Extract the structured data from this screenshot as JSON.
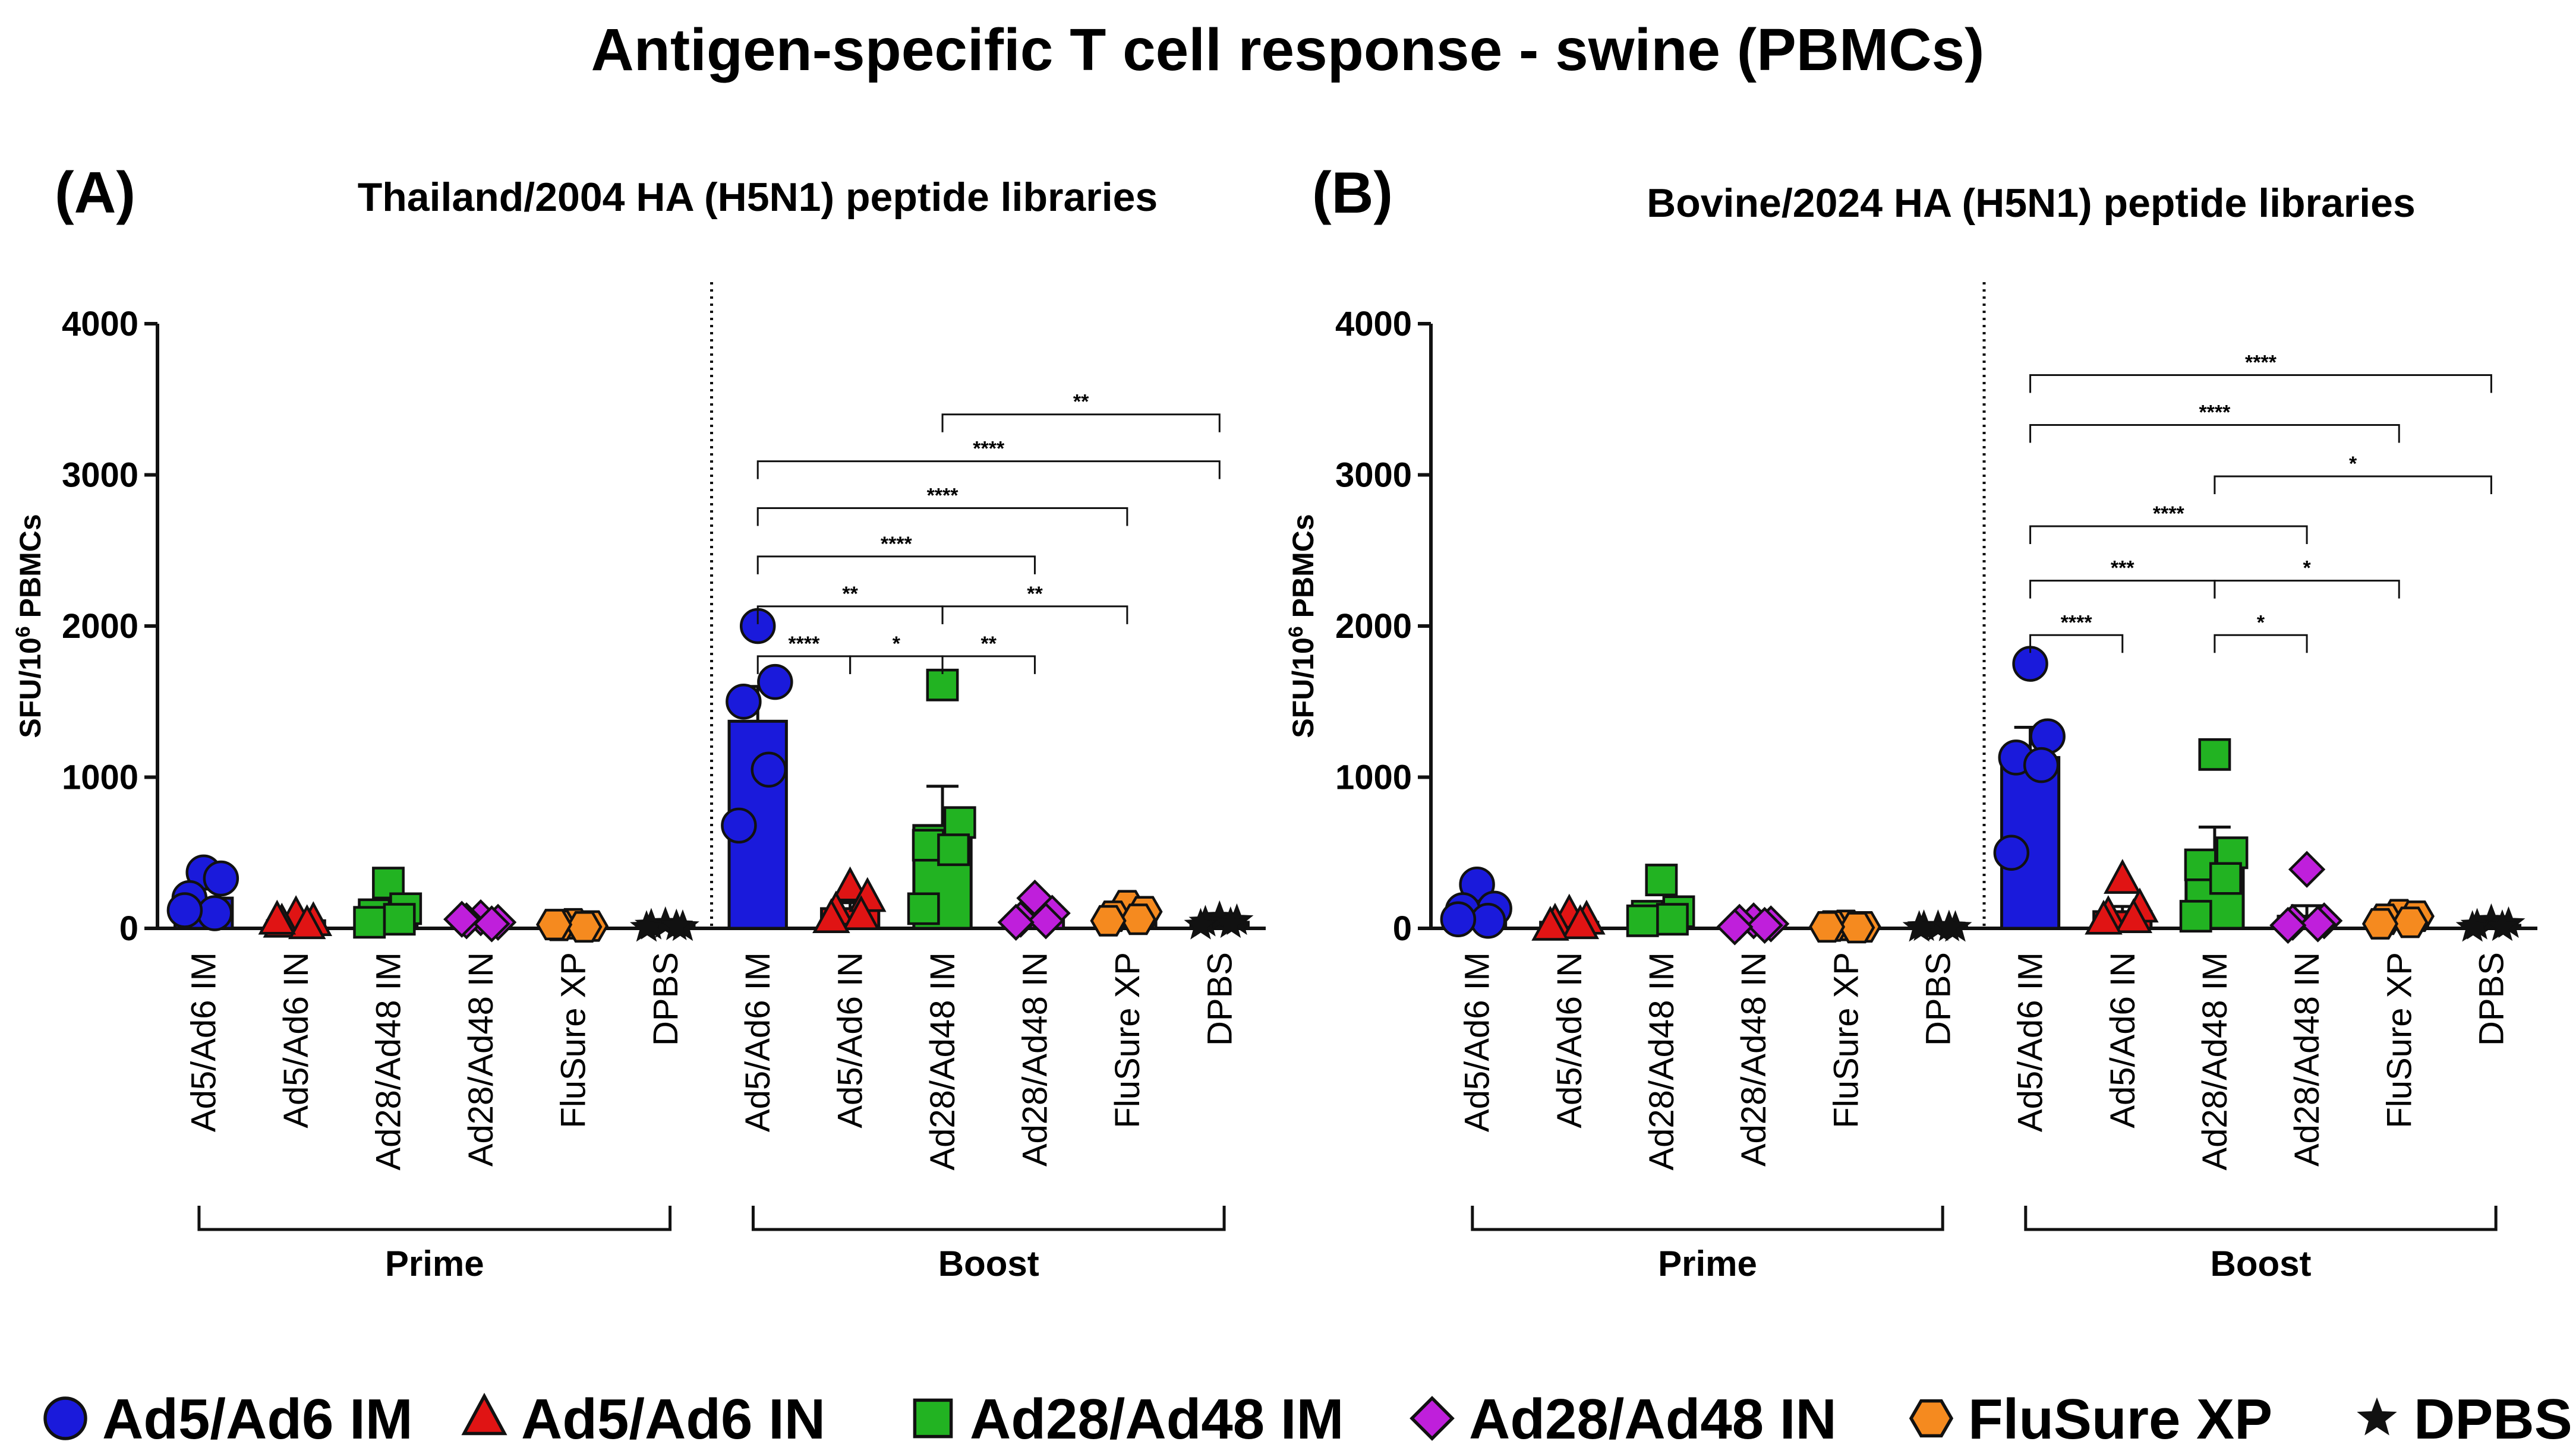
{
  "title": "Antigen-specific T cell response - swine (PBMCs)",
  "colors": {
    "Ad5/Ad6 IM": "#1a1adb",
    "Ad5/Ad6 IN": "#e01414",
    "Ad28/Ad48 IM": "#22b322",
    "Ad28/Ad48 IN": "#bf1fdb",
    "FluSure XP": "#f58a1f",
    "DPBS": "#111111"
  },
  "legend": [
    {
      "label": "Ad5/Ad6 IM",
      "marker": "circle"
    },
    {
      "label": "Ad5/Ad6 IN",
      "marker": "triangle"
    },
    {
      "label": "Ad28/Ad48 IM",
      "marker": "square"
    },
    {
      "label": "Ad28/Ad48 IN",
      "marker": "diamond"
    },
    {
      "label": "FluSure XP",
      "marker": "hexagon"
    },
    {
      "label": "DPBS",
      "marker": "star"
    }
  ],
  "chart_data": [
    {
      "type": "bar",
      "panel_label": "(A)",
      "title": "Thailand/2004 HA (H5N1) peptide libraries",
      "ylabel": "SFU/10",
      "ylabel_sup": "6",
      "ylabel_tail": " PBMCs",
      "ylim": [
        0,
        4000
      ],
      "yticks": [
        0,
        1000,
        2000,
        3000,
        4000
      ],
      "ytick_labels": [
        "0",
        "1000",
        "2000",
        "3000",
        "4000"
      ],
      "groups": [
        {
          "label": "Prime",
          "start": 0,
          "end": 5
        },
        {
          "label": "Boost",
          "start": 6,
          "end": 11
        }
      ],
      "divider_after": 5,
      "categories": [
        "Ad5/Ad6 IM",
        "Ad5/Ad6 IN",
        "Ad28/Ad48 IM",
        "Ad28/Ad48 IN",
        "FluSure XP",
        "DPBS",
        "Ad5/Ad6 IM",
        "Ad5/Ad6 IN",
        "Ad28/Ad48 IM",
        "Ad28/Ad48 IN",
        "FluSure XP",
        "DPBS"
      ],
      "series_index": [
        0,
        1,
        2,
        3,
        4,
        5,
        0,
        1,
        2,
        3,
        4,
        5
      ],
      "values": [
        200,
        50,
        110,
        50,
        20,
        15,
        1370,
        130,
        680,
        80,
        90,
        40
      ],
      "sem": [
        60,
        15,
        50,
        12,
        5,
        5,
        230,
        40,
        260,
        30,
        25,
        10
      ],
      "points": [
        [
          370,
          330,
          200,
          100,
          120
        ],
        [
          80,
          40,
          30,
          20,
          50
        ],
        [
          300,
          130,
          90,
          60,
          40
        ],
        [
          70,
          40,
          50,
          30,
          60
        ],
        [
          30,
          15,
          20,
          10,
          25
        ],
        [
          30,
          10,
          20,
          15,
          5
        ],
        [
          2000,
          1630,
          1500,
          1050,
          680
        ],
        [
          270,
          200,
          110,
          80,
          60
        ],
        [
          1610,
          700,
          550,
          520,
          130
        ],
        [
          200,
          100,
          60,
          50,
          40
        ],
        [
          150,
          110,
          80,
          60,
          50
        ],
        [
          70,
          50,
          40,
          30,
          20
        ]
      ],
      "significance": [
        {
          "from": 6,
          "to": 7,
          "level": 1800,
          "label": "****"
        },
        {
          "from": 7,
          "to": 8,
          "level": 1800,
          "label": "*"
        },
        {
          "from": 8,
          "to": 9,
          "level": 1800,
          "label": "**"
        },
        {
          "from": 6,
          "to": 8,
          "level": 2130,
          "label": "**"
        },
        {
          "from": 8,
          "to": 10,
          "level": 2130,
          "label": "**"
        },
        {
          "from": 6,
          "to": 9,
          "level": 2460,
          "label": "****"
        },
        {
          "from": 6,
          "to": 10,
          "level": 2780,
          "label": "****"
        },
        {
          "from": 6,
          "to": 11,
          "level": 3090,
          "label": "****"
        },
        {
          "from": 8,
          "to": 11,
          "level": 3400,
          "label": "**"
        }
      ]
    },
    {
      "type": "bar",
      "panel_label": "(B)",
      "title": "Bovine/2024 HA (H5N1) peptide libraries",
      "ylabel": "SFU/10",
      "ylabel_sup": "6",
      "ylabel_tail": " PBMCs",
      "ylim": [
        0,
        4000
      ],
      "yticks": [
        0,
        1000,
        2000,
        3000,
        4000
      ],
      "ytick_labels": [
        "0",
        "1000",
        "2000",
        "3000",
        "4000"
      ],
      "groups": [
        {
          "label": "Prime",
          "start": 0,
          "end": 5
        },
        {
          "label": "Boost",
          "start": 6,
          "end": 11
        }
      ],
      "divider_after": 5,
      "categories": [
        "Ad5/Ad6 IM",
        "Ad5/Ad6 IN",
        "Ad28/Ad48 IM",
        "Ad28/Ad48 IN",
        "FluSure XP",
        "DPBS",
        "Ad5/Ad6 IM",
        "Ad5/Ad6 IN",
        "Ad28/Ad48 IM",
        "Ad28/Ad48 IN",
        "FluSure XP",
        "DPBS"
      ],
      "series_index": [
        0,
        1,
        2,
        3,
        4,
        5,
        0,
        1,
        2,
        3,
        4,
        5
      ],
      "values": [
        130,
        40,
        110,
        30,
        10,
        8,
        1130,
        110,
        440,
        80,
        60,
        20
      ],
      "sem": [
        50,
        15,
        60,
        10,
        5,
        3,
        200,
        35,
        230,
        70,
        15,
        8
      ],
      "points": [
        [
          290,
          130,
          120,
          50,
          60
        ],
        [
          90,
          50,
          30,
          20,
          10
        ],
        [
          320,
          110,
          80,
          60,
          50
        ],
        [
          50,
          30,
          40,
          20,
          10
        ],
        [
          20,
          10,
          15,
          5,
          10
        ],
        [
          10,
          5,
          10,
          8,
          5
        ],
        [
          1750,
          1270,
          1130,
          1080,
          500
        ],
        [
          320,
          130,
          80,
          60,
          50
        ],
        [
          1150,
          500,
          420,
          330,
          80
        ],
        [
          390,
          50,
          40,
          30,
          20
        ],
        [
          90,
          80,
          60,
          40,
          30
        ],
        [
          50,
          30,
          20,
          10,
          5
        ]
      ],
      "significance": [
        {
          "from": 6,
          "to": 7,
          "level": 1940,
          "label": "****"
        },
        {
          "from": 8,
          "to": 9,
          "level": 1940,
          "label": "*"
        },
        {
          "from": 6,
          "to": 8,
          "level": 2300,
          "label": "***"
        },
        {
          "from": 8,
          "to": 10,
          "level": 2300,
          "label": "*"
        },
        {
          "from": 6,
          "to": 9,
          "level": 2660,
          "label": "****"
        },
        {
          "from": 8,
          "to": 11,
          "level": 2990,
          "label": "*"
        },
        {
          "from": 6,
          "to": 10,
          "level": 3330,
          "label": "****"
        },
        {
          "from": 6,
          "to": 11,
          "level": 3660,
          "label": "****"
        }
      ]
    }
  ]
}
